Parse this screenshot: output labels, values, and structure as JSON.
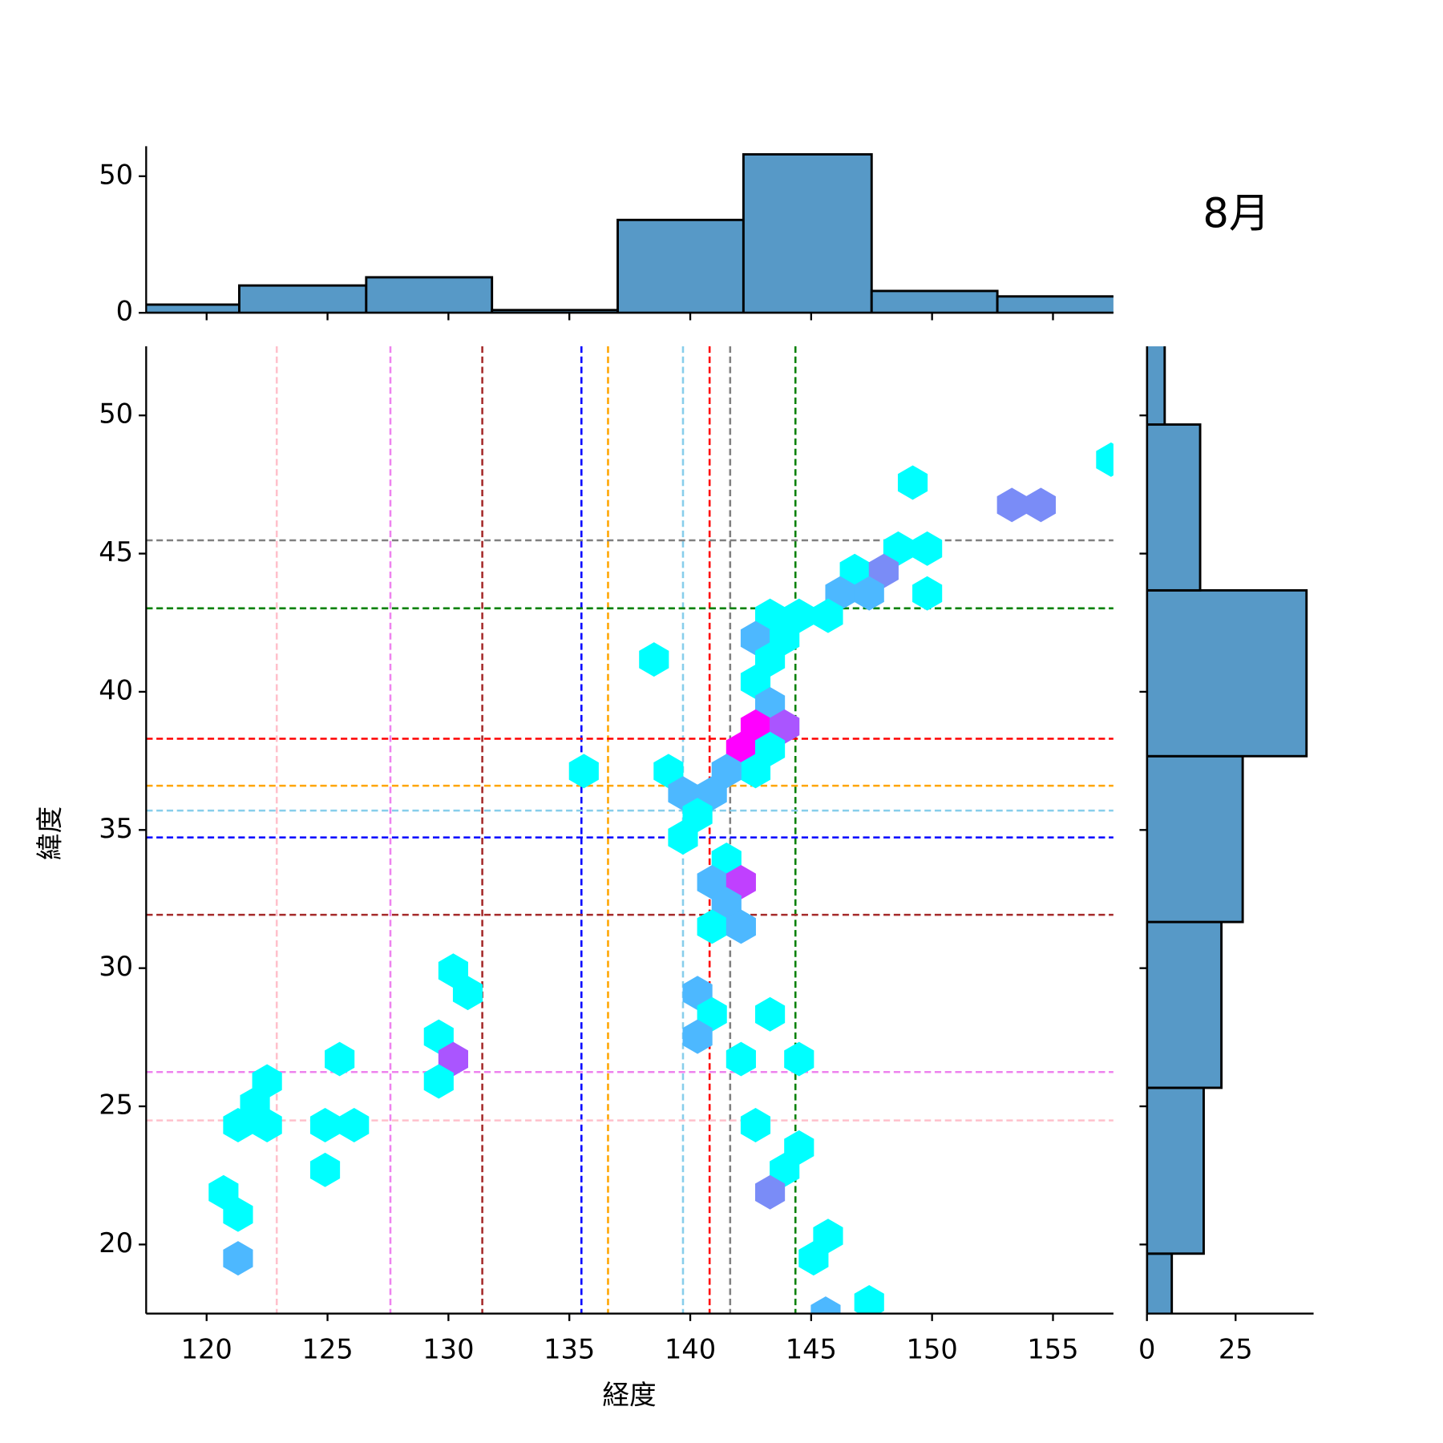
{
  "chart_data": [
    {
      "type": "hexbin",
      "title": "8月",
      "xlabel": "経度",
      "ylabel": "緯度",
      "xlim": [
        117.5,
        157.5
      ],
      "ylim": [
        17.5,
        52.5
      ],
      "xticks": [
        120,
        125,
        130,
        135,
        140,
        145,
        150,
        155
      ],
      "yticks": [
        20,
        25,
        30,
        35,
        40,
        45,
        50
      ],
      "hexes": [
        {
          "x": 149.2,
          "y": 47.57,
          "color": "#00ffff"
        },
        {
          "x": 153.3,
          "y": 46.76,
          "color": "#7a8cf7"
        },
        {
          "x": 154.5,
          "y": 46.76,
          "color": "#7a8cf7"
        },
        {
          "x": 157.4,
          "y": 48.4,
          "color": "#00ffff"
        },
        {
          "x": 148.6,
          "y": 45.18,
          "color": "#00ffff"
        },
        {
          "x": 149.8,
          "y": 45.18,
          "color": "#00ffff"
        },
        {
          "x": 146.8,
          "y": 44.37,
          "color": "#00ffff"
        },
        {
          "x": 148.0,
          "y": 44.37,
          "color": "#7a8cf7"
        },
        {
          "x": 146.2,
          "y": 43.56,
          "color": "#4db8ff"
        },
        {
          "x": 147.4,
          "y": 43.56,
          "color": "#4db8ff"
        },
        {
          "x": 149.8,
          "y": 43.56,
          "color": "#00ffff"
        },
        {
          "x": 143.3,
          "y": 42.75,
          "color": "#00ffff"
        },
        {
          "x": 144.5,
          "y": 42.75,
          "color": "#00ffff"
        },
        {
          "x": 145.7,
          "y": 42.75,
          "color": "#00ffff"
        },
        {
          "x": 142.7,
          "y": 41.94,
          "color": "#4db8ff"
        },
        {
          "x": 143.9,
          "y": 41.94,
          "color": "#00ffff"
        },
        {
          "x": 138.5,
          "y": 41.17,
          "color": "#00ffff"
        },
        {
          "x": 143.3,
          "y": 41.17,
          "color": "#00ffff"
        },
        {
          "x": 142.7,
          "y": 40.36,
          "color": "#00ffff"
        },
        {
          "x": 143.3,
          "y": 39.55,
          "color": "#4db8ff"
        },
        {
          "x": 142.7,
          "y": 38.74,
          "color": "#ff00ff"
        },
        {
          "x": 143.9,
          "y": 38.74,
          "color": "#aa55ff"
        },
        {
          "x": 142.1,
          "y": 37.93,
          "color": "#ff00ff"
        },
        {
          "x": 143.3,
          "y": 37.93,
          "color": "#00ffff"
        },
        {
          "x": 142.7,
          "y": 37.13,
          "color": "#00ffff"
        },
        {
          "x": 135.6,
          "y": 37.13,
          "color": "#00ffff"
        },
        {
          "x": 139.1,
          "y": 37.13,
          "color": "#00ffff"
        },
        {
          "x": 141.5,
          "y": 37.13,
          "color": "#4db8ff"
        },
        {
          "x": 139.7,
          "y": 36.32,
          "color": "#4db8ff"
        },
        {
          "x": 140.9,
          "y": 36.32,
          "color": "#4db8ff"
        },
        {
          "x": 140.3,
          "y": 35.54,
          "color": "#00ffff"
        },
        {
          "x": 139.7,
          "y": 34.73,
          "color": "#00ffff"
        },
        {
          "x": 141.5,
          "y": 33.92,
          "color": "#00ffff"
        },
        {
          "x": 140.9,
          "y": 33.11,
          "color": "#4db8ff"
        },
        {
          "x": 142.1,
          "y": 33.11,
          "color": "#c040ff"
        },
        {
          "x": 141.5,
          "y": 32.31,
          "color": "#4db8ff"
        },
        {
          "x": 140.9,
          "y": 31.5,
          "color": "#00ffff"
        },
        {
          "x": 142.1,
          "y": 31.5,
          "color": "#4db8ff"
        },
        {
          "x": 130.2,
          "y": 29.91,
          "color": "#00ffff"
        },
        {
          "x": 130.8,
          "y": 29.1,
          "color": "#00ffff"
        },
        {
          "x": 140.3,
          "y": 29.1,
          "color": "#4db8ff"
        },
        {
          "x": 140.9,
          "y": 28.33,
          "color": "#00ffff"
        },
        {
          "x": 143.3,
          "y": 28.33,
          "color": "#00ffff"
        },
        {
          "x": 129.6,
          "y": 27.52,
          "color": "#00ffff"
        },
        {
          "x": 140.3,
          "y": 27.52,
          "color": "#4db8ff"
        },
        {
          "x": 125.5,
          "y": 26.71,
          "color": "#00ffff"
        },
        {
          "x": 130.2,
          "y": 26.71,
          "color": "#aa55ff"
        },
        {
          "x": 142.1,
          "y": 26.71,
          "color": "#00ffff"
        },
        {
          "x": 144.5,
          "y": 26.71,
          "color": "#00ffff"
        },
        {
          "x": 122.5,
          "y": 25.9,
          "color": "#00ffff"
        },
        {
          "x": 129.6,
          "y": 25.9,
          "color": "#00ffff"
        },
        {
          "x": 122.0,
          "y": 25.09,
          "color": "#00ffff"
        },
        {
          "x": 121.3,
          "y": 24.32,
          "color": "#00ffff"
        },
        {
          "x": 122.5,
          "y": 24.32,
          "color": "#00ffff"
        },
        {
          "x": 124.9,
          "y": 24.32,
          "color": "#00ffff"
        },
        {
          "x": 126.1,
          "y": 24.32,
          "color": "#00ffff"
        },
        {
          "x": 142.7,
          "y": 24.32,
          "color": "#00ffff"
        },
        {
          "x": 144.5,
          "y": 23.51,
          "color": "#00ffff"
        },
        {
          "x": 124.9,
          "y": 22.7,
          "color": "#00ffff"
        },
        {
          "x": 143.9,
          "y": 22.7,
          "color": "#00ffff"
        },
        {
          "x": 120.7,
          "y": 21.89,
          "color": "#00ffff"
        },
        {
          "x": 143.3,
          "y": 21.89,
          "color": "#7a8cf7"
        },
        {
          "x": 121.3,
          "y": 21.08,
          "color": "#00ffff"
        },
        {
          "x": 145.7,
          "y": 20.31,
          "color": "#00ffff"
        },
        {
          "x": 121.3,
          "y": 19.5,
          "color": "#4db8ff"
        },
        {
          "x": 145.1,
          "y": 19.5,
          "color": "#00ffff"
        },
        {
          "x": 147.4,
          "y": 17.91,
          "color": "#00ffff"
        },
        {
          "x": 145.6,
          "y": 17.5,
          "color": "#4db8ff"
        }
      ],
      "vlines": [
        {
          "x": 122.9,
          "color": "#ffc0cb"
        },
        {
          "x": 127.6,
          "color": "#ee82ee"
        },
        {
          "x": 131.4,
          "color": "#a52a2a"
        },
        {
          "x": 135.5,
          "color": "#0000ff"
        },
        {
          "x": 136.6,
          "color": "#ffa500"
        },
        {
          "x": 139.7,
          "color": "#87ceeb"
        },
        {
          "x": 140.8,
          "color": "#ff0000"
        },
        {
          "x": 141.65,
          "color": "#808080"
        },
        {
          "x": 144.35,
          "color": "#008000"
        }
      ],
      "hlines": [
        {
          "y": 45.48,
          "color": "#808080"
        },
        {
          "y": 43.02,
          "color": "#008000"
        },
        {
          "y": 38.3,
          "color": "#ff0000"
        },
        {
          "y": 36.6,
          "color": "#ffa500"
        },
        {
          "y": 35.7,
          "color": "#87ceeb"
        },
        {
          "y": 34.73,
          "color": "#0000ff"
        },
        {
          "y": 31.93,
          "color": "#a52a2a"
        },
        {
          "y": 26.24,
          "color": "#ee82ee"
        },
        {
          "y": 24.49,
          "color": "#ffc0cb"
        }
      ]
    },
    {
      "type": "histogram",
      "orientation": "vertical",
      "color": "#5799c7",
      "bins": [
        116.1,
        121.35,
        126.6,
        131.8,
        137.0,
        142.2,
        147.5,
        152.7,
        157.9
      ],
      "counts": [
        3,
        10,
        13,
        1,
        34,
        58,
        8,
        6
      ],
      "ylim": [
        0,
        61
      ],
      "yticks": [
        0,
        50
      ]
    },
    {
      "type": "histogram",
      "orientation": "horizontal",
      "color": "#5799c7",
      "bins": [
        13.67,
        19.67,
        25.67,
        31.67,
        37.67,
        43.67,
        49.67,
        55.67
      ],
      "counts": [
        7,
        16,
        21,
        27,
        45,
        15,
        5
      ],
      "xlim": [
        0,
        47
      ],
      "xticks": [
        0,
        25
      ]
    }
  ]
}
